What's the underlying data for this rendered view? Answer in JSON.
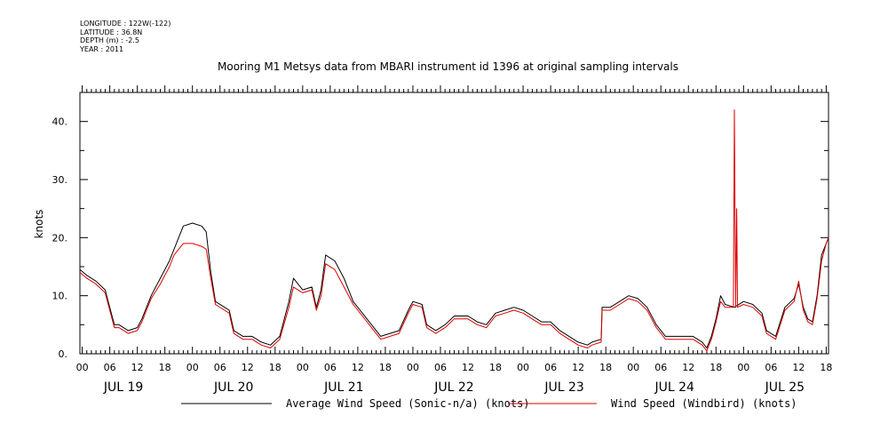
{
  "meta": {
    "longitude": "LONGITUDE : 122W(-122)",
    "latitude": "LATITUDE : 36.8N",
    "depth": "DEPTH (m) : -2.5",
    "year": "YEAR : 2011"
  },
  "colors": {
    "series1": "#000000",
    "series2": "#e00000"
  },
  "chart_data": {
    "type": "line",
    "title": "Mooring M1 Metsys data from MBARI instrument id 1396 at original sampling intervals",
    "ylabel": "knots",
    "xlabel": "",
    "ylim": [
      0,
      45
    ],
    "yticks": [
      0,
      10,
      20,
      30,
      40
    ],
    "ytick_labels": [
      "0.",
      "10.",
      "20.",
      "30.",
      "40."
    ],
    "xlim": [
      -0.5,
      162.5
    ],
    "x_unit": "hours since JUL 19 00:00",
    "hour_tick_labels": [
      "00",
      "06",
      "12",
      "18",
      "00",
      "06",
      "12",
      "18",
      "00",
      "06",
      "12",
      "18",
      "00",
      "06",
      "12",
      "18",
      "00",
      "06",
      "12",
      "18",
      "00",
      "06",
      "12",
      "18",
      "00",
      "06",
      "12",
      "18"
    ],
    "day_labels": [
      "JUL 19",
      "JUL 20",
      "JUL 21",
      "JUL 22",
      "JUL 23",
      "JUL 24",
      "JUL 25"
    ],
    "grid": false,
    "legend_position": "bottom",
    "series": [
      {
        "name": "Average Wind Speed (Sonic-n/a) (knots)",
        "color": "#000000",
        "points": [
          [
            -0.5,
            14.5
          ],
          [
            1,
            13.5
          ],
          [
            3,
            12.5
          ],
          [
            5,
            11
          ],
          [
            6,
            8
          ],
          [
            7,
            5
          ],
          [
            8,
            5
          ],
          [
            10,
            4
          ],
          [
            12,
            4.5
          ],
          [
            13,
            6
          ],
          [
            14,
            8
          ],
          [
            15,
            10
          ],
          [
            17,
            13
          ],
          [
            19,
            16
          ],
          [
            20,
            18
          ],
          [
            22,
            22
          ],
          [
            24,
            22.5
          ],
          [
            26,
            22
          ],
          [
            27,
            21
          ],
          [
            28,
            14
          ],
          [
            29,
            9
          ],
          [
            31,
            8
          ],
          [
            32,
            7.5
          ],
          [
            33,
            4
          ],
          [
            35,
            3
          ],
          [
            37,
            3
          ],
          [
            39,
            2
          ],
          [
            41,
            1.5
          ],
          [
            43,
            3
          ],
          [
            45,
            9
          ],
          [
            46,
            13
          ],
          [
            48,
            11
          ],
          [
            50,
            11.5
          ],
          [
            51,
            8
          ],
          [
            52,
            11
          ],
          [
            53,
            17
          ],
          [
            55,
            16
          ],
          [
            57,
            13
          ],
          [
            59,
            9
          ],
          [
            61,
            7
          ],
          [
            63,
            5
          ],
          [
            65,
            3
          ],
          [
            67,
            3.5
          ],
          [
            69,
            4
          ],
          [
            71,
            7.5
          ],
          [
            72,
            9
          ],
          [
            74,
            8.5
          ],
          [
            75,
            5
          ],
          [
            77,
            4
          ],
          [
            79,
            5
          ],
          [
            81,
            6.5
          ],
          [
            84,
            6.5
          ],
          [
            86,
            5.5
          ],
          [
            88,
            5
          ],
          [
            90,
            7
          ],
          [
            92,
            7.5
          ],
          [
            94,
            8
          ],
          [
            96,
            7.5
          ],
          [
            98,
            6.5
          ],
          [
            100,
            5.5
          ],
          [
            102,
            5.5
          ],
          [
            104,
            4
          ],
          [
            106,
            3
          ],
          [
            108,
            2
          ],
          [
            110,
            1.5
          ],
          [
            111,
            2
          ],
          [
            113,
            2.5
          ],
          [
            113.2,
            8
          ],
          [
            115,
            8
          ],
          [
            117,
            9
          ],
          [
            119,
            10
          ],
          [
            121,
            9.5
          ],
          [
            123,
            8
          ],
          [
            125,
            5
          ],
          [
            127,
            3
          ],
          [
            129,
            3
          ],
          [
            131,
            3
          ],
          [
            133,
            3
          ],
          [
            135,
            2
          ],
          [
            136,
            1
          ],
          [
            137,
            3
          ],
          [
            138,
            6
          ],
          [
            139,
            10
          ],
          [
            140,
            8.5
          ],
          [
            142,
            8
          ],
          [
            144,
            9
          ],
          [
            146,
            8.5
          ],
          [
            148,
            7
          ],
          [
            149,
            4
          ],
          [
            151,
            3
          ],
          [
            153,
            8
          ],
          [
            155,
            9.5
          ],
          [
            156,
            12
          ],
          [
            157,
            8
          ],
          [
            158,
            6
          ],
          [
            159,
            5.5
          ],
          [
            160,
            10
          ],
          [
            161,
            17
          ],
          [
            162,
            19
          ],
          [
            162.5,
            20
          ]
        ]
      },
      {
        "name": "Wind Speed (Windbird) (knots)",
        "color": "#e00000",
        "points": [
          [
            -0.5,
            14
          ],
          [
            1,
            13
          ],
          [
            3,
            12
          ],
          [
            5,
            10.5
          ],
          [
            6,
            7.5
          ],
          [
            7,
            4.5
          ],
          [
            8,
            4.5
          ],
          [
            10,
            3.5
          ],
          [
            12,
            4
          ],
          [
            13,
            5.5
          ],
          [
            14,
            7.5
          ],
          [
            15,
            9.5
          ],
          [
            17,
            12
          ],
          [
            19,
            15
          ],
          [
            20,
            17
          ],
          [
            22,
            19
          ],
          [
            24,
            19
          ],
          [
            26,
            18.5
          ],
          [
            27,
            18
          ],
          [
            28,
            13
          ],
          [
            29,
            8.5
          ],
          [
            31,
            7.5
          ],
          [
            32,
            7
          ],
          [
            33,
            3.5
          ],
          [
            35,
            2.5
          ],
          [
            37,
            2.5
          ],
          [
            39,
            1.5
          ],
          [
            41,
            1
          ],
          [
            43,
            2.5
          ],
          [
            45,
            8
          ],
          [
            46,
            11.5
          ],
          [
            48,
            10.5
          ],
          [
            50,
            11
          ],
          [
            51,
            7.5
          ],
          [
            52,
            10
          ],
          [
            53,
            15.5
          ],
          [
            55,
            14.5
          ],
          [
            57,
            11.5
          ],
          [
            59,
            8.5
          ],
          [
            61,
            6.5
          ],
          [
            63,
            4.5
          ],
          [
            65,
            2.5
          ],
          [
            67,
            3
          ],
          [
            69,
            3.5
          ],
          [
            71,
            7
          ],
          [
            72,
            8.5
          ],
          [
            74,
            8
          ],
          [
            75,
            4.5
          ],
          [
            77,
            3.5
          ],
          [
            79,
            4.5
          ],
          [
            81,
            6
          ],
          [
            84,
            6
          ],
          [
            86,
            5
          ],
          [
            88,
            4.5
          ],
          [
            90,
            6.5
          ],
          [
            92,
            7
          ],
          [
            94,
            7.5
          ],
          [
            96,
            7
          ],
          [
            98,
            6
          ],
          [
            100,
            5
          ],
          [
            102,
            5
          ],
          [
            104,
            3.5
          ],
          [
            106,
            2.5
          ],
          [
            108,
            1.5
          ],
          [
            110,
            1
          ],
          [
            111,
            1.5
          ],
          [
            113,
            2
          ],
          [
            113.2,
            7.5
          ],
          [
            115,
            7.5
          ],
          [
            117,
            8.5
          ],
          [
            119,
            9.5
          ],
          [
            121,
            9
          ],
          [
            123,
            7.5
          ],
          [
            125,
            4.5
          ],
          [
            127,
            2.5
          ],
          [
            129,
            2.5
          ],
          [
            131,
            2.5
          ],
          [
            133,
            2.5
          ],
          [
            135,
            1.5
          ],
          [
            136,
            0.5
          ],
          [
            137,
            2.5
          ],
          [
            138,
            5.5
          ],
          [
            139,
            9
          ],
          [
            140,
            8
          ],
          [
            141.8,
            8
          ],
          [
            142,
            42
          ],
          [
            142.3,
            8
          ],
          [
            142.5,
            25
          ],
          [
            142.7,
            8
          ],
          [
            144,
            8.5
          ],
          [
            146,
            8
          ],
          [
            148,
            6.5
          ],
          [
            149,
            3.5
          ],
          [
            151,
            2.5
          ],
          [
            153,
            7.5
          ],
          [
            155,
            9
          ],
          [
            156,
            12.5
          ],
          [
            157,
            7.5
          ],
          [
            158,
            5.5
          ],
          [
            159,
            5
          ],
          [
            160,
            9.5
          ],
          [
            161,
            16
          ],
          [
            162,
            19
          ],
          [
            162.5,
            20
          ]
        ]
      }
    ]
  }
}
